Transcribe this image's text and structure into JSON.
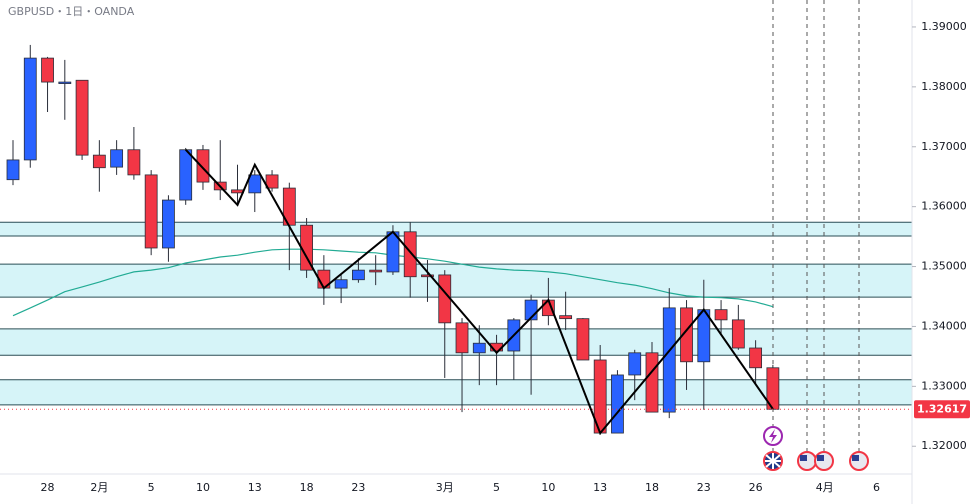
{
  "chart_data": {
    "type": "candlestick",
    "title": "GBPUSD・1日・OANDA",
    "categories": [
      null,
      null,
      "28",
      null,
      null,
      "2月",
      null,
      null,
      "5",
      null,
      null,
      "10",
      null,
      null,
      "13",
      null,
      null,
      "18",
      null,
      null,
      "23",
      null,
      null,
      null,
      null,
      "3月",
      null,
      null,
      "5",
      null,
      null,
      "10",
      null,
      null,
      "13",
      null,
      null,
      "18",
      null,
      null,
      "23",
      null,
      null,
      "26",
      null,
      null,
      null,
      "4月",
      null,
      null,
      "6"
    ],
    "open": [
      1.3645,
      1.3678,
      1.3848,
      1.3806,
      1.3811,
      1.3686,
      1.3666,
      1.3695,
      1.3653,
      1.3531,
      1.3611,
      1.3695,
      1.3641,
      1.3628,
      1.3623,
      1.3653,
      1.3631,
      1.3569,
      1.3494,
      1.3464,
      1.3478,
      1.3494,
      1.3491,
      1.3558,
      1.3486,
      1.3486,
      1.3406,
      1.3356,
      1.3372,
      1.3359,
      1.3411,
      1.3444,
      1.3418,
      1.3413,
      1.3344,
      1.3222,
      1.3319,
      1.3356,
      1.3257,
      1.3431,
      1.3341,
      1.3428,
      1.3411,
      1.3364,
      1.3331,
      null,
      null,
      null,
      null,
      null,
      null
    ],
    "high": [
      1.3711,
      1.387,
      1.385,
      1.3845,
      1.3811,
      1.3711,
      1.3711,
      1.3733,
      1.3661,
      1.3619,
      1.3698,
      1.3703,
      1.3711,
      1.367,
      1.3661,
      1.3661,
      1.364,
      1.3581,
      1.3519,
      1.3486,
      1.3514,
      1.3519,
      1.3569,
      1.3574,
      1.3511,
      1.3494,
      1.3414,
      1.3402,
      1.3386,
      1.3414,
      1.3453,
      1.3481,
      1.3458,
      1.3414,
      1.3369,
      1.3327,
      1.3361,
      1.3374,
      1.3464,
      1.3444,
      1.3478,
      1.3444,
      1.3436,
      1.3377,
      1.3336,
      null,
      null,
      null,
      null,
      null,
      null
    ],
    "low": [
      1.3636,
      1.3665,
      1.3758,
      1.3745,
      1.3678,
      1.3625,
      1.3653,
      1.3645,
      1.3519,
      1.3508,
      1.3603,
      1.3628,
      1.3611,
      1.3603,
      1.3591,
      1.3625,
      1.3494,
      1.3481,
      1.3436,
      1.3439,
      1.3473,
      1.3469,
      1.3486,
      1.3448,
      1.3441,
      1.3314,
      1.3257,
      1.3302,
      1.3302,
      1.3311,
      1.3286,
      1.3402,
      1.3394,
      1.3344,
      1.3219,
      1.3222,
      1.3277,
      1.3257,
      1.3247,
      1.3294,
      1.3261,
      1.3386,
      1.3361,
      1.3302,
      1.3261,
      null,
      null,
      null,
      null,
      null,
      null
    ],
    "close": [
      1.3678,
      1.3848,
      1.3808,
      1.3808,
      1.3686,
      1.3665,
      1.3695,
      1.3653,
      1.3531,
      1.3611,
      1.3695,
      1.3641,
      1.3628,
      1.3623,
      1.3653,
      1.3631,
      1.3569,
      1.3494,
      1.3464,
      1.3478,
      1.3494,
      1.3491,
      1.3558,
      1.3483,
      1.3483,
      1.3406,
      1.3356,
      1.3372,
      1.3359,
      1.3411,
      1.3444,
      1.3418,
      1.3413,
      1.3344,
      1.3222,
      1.3319,
      1.3356,
      1.3257,
      1.3431,
      1.3341,
      1.3428,
      1.3411,
      1.3364,
      1.3331,
      1.32617,
      null,
      null,
      null,
      null,
      null,
      null
    ],
    "up_color": "#2962ff",
    "down_color": "#f23645",
    "moving_average": {
      "color": "#22ab94",
      "values": [
        1.3418,
        1.3431,
        1.3444,
        1.3458,
        1.3466,
        1.3474,
        1.3483,
        1.3491,
        1.3494,
        1.3498,
        1.3506,
        1.3511,
        1.3516,
        1.3519,
        1.3524,
        1.3528,
        1.3529,
        1.3529,
        1.3528,
        1.3526,
        1.3524,
        1.3523,
        1.3519,
        1.3516,
        1.3513,
        1.3509,
        1.3504,
        1.3499,
        1.3496,
        1.3494,
        1.3493,
        1.3491,
        1.3488,
        1.3483,
        1.3478,
        1.3473,
        1.3469,
        1.3463,
        1.3456,
        1.3451,
        1.3449,
        1.3448,
        1.3446,
        1.3441,
        1.3433,
        null,
        null,
        null,
        null,
        null,
        null
      ]
    },
    "zigzag": {
      "color": "#000000",
      "x": [
        10,
        13,
        14,
        18,
        22,
        28,
        31,
        34,
        40,
        44
      ],
      "values": [
        1.3695,
        1.3603,
        1.367,
        1.3464,
        1.3558,
        1.3356,
        1.3444,
        1.3222,
        1.3428,
        1.3262
      ]
    },
    "zones": [
      {
        "low": 1.3551,
        "high": 1.3574
      },
      {
        "low": 1.3449,
        "high": 1.3504
      },
      {
        "low": 1.3352,
        "high": 1.3396
      },
      {
        "low": 1.3269,
        "high": 1.3311
      }
    ],
    "zone_color": "#d6f4f8",
    "zone_border_color": "#2a4d55",
    "last_price": 1.32617,
    "last_price_color": "#f23645",
    "ylim": [
      1.3157,
      1.3945
    ],
    "yticks": [
      {
        "value": 1.32,
        "label": "1.32000"
      },
      {
        "value": 1.33,
        "label": "1.33000"
      },
      {
        "value": 1.34,
        "label": "1.34000"
      },
      {
        "value": 1.35,
        "label": "1.35000"
      },
      {
        "value": 1.36,
        "label": "1.36000"
      },
      {
        "value": 1.37,
        "label": "1.37000"
      },
      {
        "value": 1.38,
        "label": "1.38000"
      },
      {
        "value": 1.39,
        "label": "1.39000"
      }
    ]
  }
}
